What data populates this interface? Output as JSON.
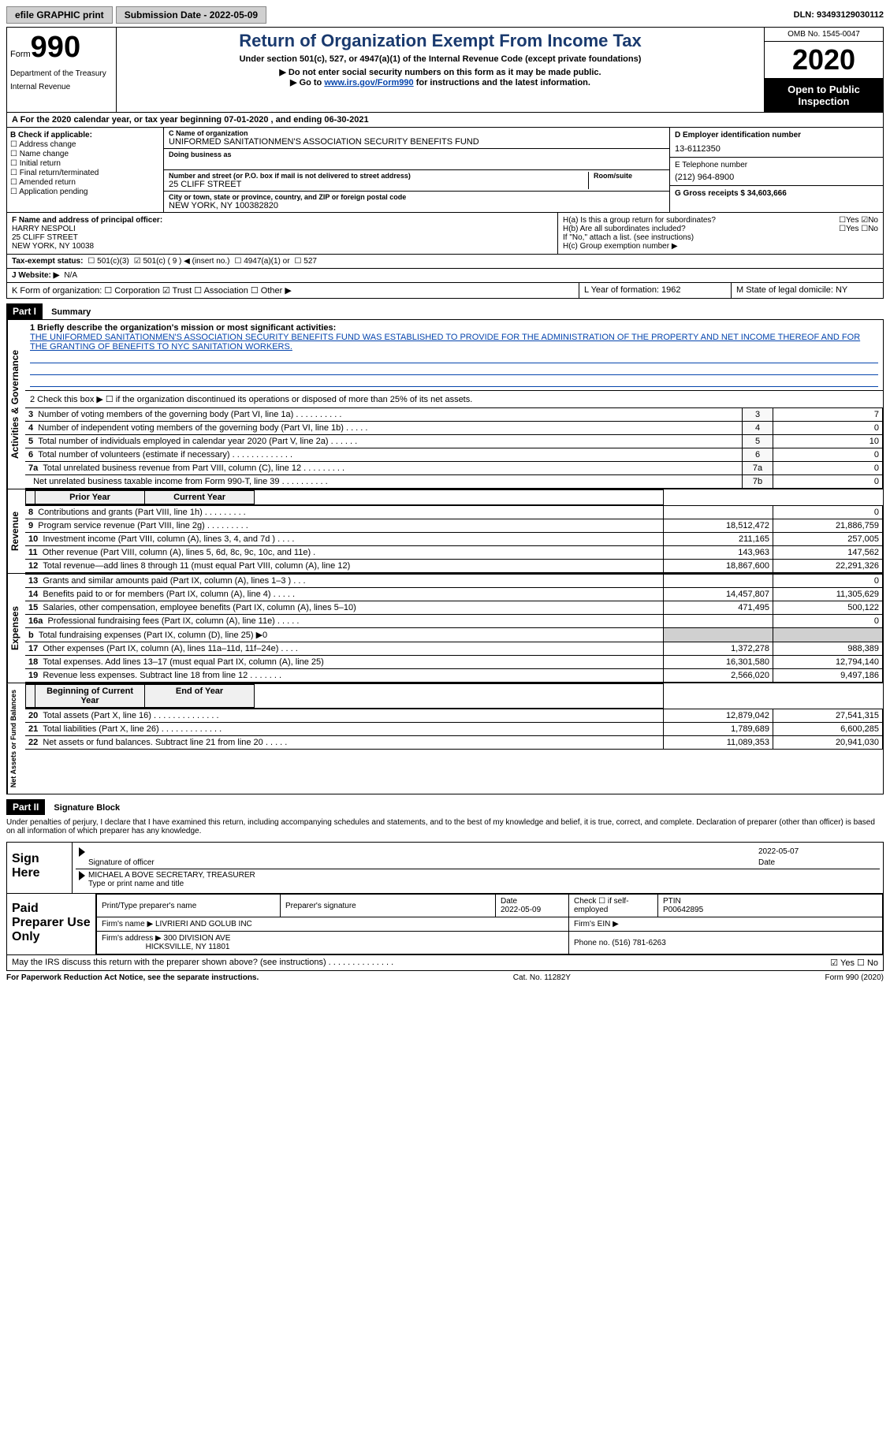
{
  "top": {
    "efile": "efile GRAPHIC print",
    "submission_label": "Submission Date - 2022-05-09",
    "dln_label": "DLN: 93493129030112"
  },
  "header": {
    "form_word": "Form",
    "form_num": "990",
    "dept1": "Department of the Treasury",
    "dept2": "Internal Revenue",
    "title": "Return of Organization Exempt From Income Tax",
    "subtitle": "Under section 501(c), 527, or 4947(a)(1) of the Internal Revenue Code (except private foundations)",
    "line1": "▶ Do not enter social security numbers on this form as it may be made public.",
    "line2_pre": "▶ Go to ",
    "line2_link": "www.irs.gov/Form990",
    "line2_post": " for instructions and the latest information.",
    "omb": "OMB No. 1545-0047",
    "year": "2020",
    "open": "Open to Public Inspection"
  },
  "row_a": "A For the 2020 calendar year, or tax year beginning 07-01-2020   , and ending 06-30-2021",
  "section_b": {
    "label": "B Check if applicable:",
    "opts": [
      "Address change",
      "Name change",
      "Initial return",
      "Final return/terminated",
      "Amended return",
      "Application pending"
    ]
  },
  "section_c": {
    "name_label": "C Name of organization",
    "name": "UNIFORMED SANITATIONMEN'S ASSOCIATION SECURITY BENEFITS FUND",
    "dba_label": "Doing business as",
    "addr_label": "Number and street (or P.O. box if mail is not delivered to street address)",
    "room_label": "Room/suite",
    "addr": "25 CLIFF STREET",
    "city_label": "City or town, state or province, country, and ZIP or foreign postal code",
    "city": "NEW YORK, NY  100382820"
  },
  "section_de": {
    "d_label": "D Employer identification number",
    "d_val": "13-6112350",
    "e_label": "E Telephone number",
    "e_val": "(212) 964-8900",
    "g_label": "G Gross receipts $ 34,603,666"
  },
  "section_f": {
    "label": "F Name and address of principal officer:",
    "name": "HARRY NESPOLI",
    "addr1": "25 CLIFF STREET",
    "addr2": "NEW YORK, NY 10038"
  },
  "section_h": {
    "ha": "H(a)  Is this a group return for subordinates?",
    "hb": "H(b)  Are all subordinates included?",
    "hb_note": "If \"No,\" attach a list. (see instructions)",
    "hc": "H(c)  Group exemption number ▶",
    "yes": "Yes",
    "no": "No"
  },
  "tax_status": {
    "label": "Tax-exempt status:",
    "o1": "501(c)(3)",
    "o2": "501(c) ( 9 ) ◀ (insert no.)",
    "o3": "4947(a)(1) or",
    "o4": "527"
  },
  "website": {
    "label": "J   Website: ▶",
    "val": "N/A"
  },
  "k_line": "K Form of organization:   ☐ Corporation  ☑ Trust  ☐ Association  ☐ Other ▶",
  "l_line": "L Year of formation: 1962",
  "m_line": "M State of legal domicile: NY",
  "part1": {
    "header": "Part I",
    "title": "Summary",
    "q1": "1  Briefly describe the organization's mission or most significant activities:",
    "mission": "THE UNIFORMED SANITATIONMEN'S ASSOCIATION SECURITY BENEFITS FUND WAS ESTABLISHED TO PROVIDE FOR THE ADMINISTRATION OF THE PROPERTY AND NET INCOME THEREOF AND FOR THE GRANTING OF BENEFITS TO NYC SANITATION WORKERS.",
    "q2": "2   Check this box ▶ ☐  if the organization discontinued its operations or disposed of more than 25% of its net assets."
  },
  "gov_rows": [
    {
      "n": "3",
      "desc": "Number of voting members of the governing body (Part VI, line 1a)   .    .    .    .    .    .    .    .    .    .",
      "box": "3",
      "val": "7"
    },
    {
      "n": "4",
      "desc": "Number of independent voting members of the governing body (Part VI, line 1b)   .    .    .    .    .",
      "box": "4",
      "val": "0"
    },
    {
      "n": "5",
      "desc": "Total number of individuals employed in calendar year 2020 (Part V, line 2a)   .    .    .    .    .    .",
      "box": "5",
      "val": "10"
    },
    {
      "n": "6",
      "desc": "Total number of volunteers (estimate if necessary)   .    .    .    .    .    .    .    .    .    .    .    .    .",
      "box": "6",
      "val": "0"
    },
    {
      "n": "7a",
      "desc": "Total unrelated business revenue from Part VIII, column (C), line 12   .    .    .    .    .    .    .    .    .",
      "box": "7a",
      "val": "0"
    },
    {
      "n": "",
      "desc": "Net unrelated business taxable income from Form 990-T, line 39   .    .    .    .    .    .    .    .    .    .",
      "box": "7b",
      "val": "0"
    }
  ],
  "col_headers": {
    "prior": "Prior Year",
    "current": "Current Year",
    "begin": "Beginning of Current Year",
    "end": "End of Year"
  },
  "revenue_rows": [
    {
      "n": "8",
      "desc": "Contributions and grants (Part VIII, line 1h)   .    .    .    .    .    .    .    .    .",
      "prior": "",
      "curr": "0"
    },
    {
      "n": "9",
      "desc": "Program service revenue (Part VIII, line 2g)   .    .    .    .    .    .    .    .    .",
      "prior": "18,512,472",
      "curr": "21,886,759"
    },
    {
      "n": "10",
      "desc": "Investment income (Part VIII, column (A), lines 3, 4, and 7d )   .    .    .    .",
      "prior": "211,165",
      "curr": "257,005"
    },
    {
      "n": "11",
      "desc": "Other revenue (Part VIII, column (A), lines 5, 6d, 8c, 9c, 10c, and 11e)   .",
      "prior": "143,963",
      "curr": "147,562"
    },
    {
      "n": "12",
      "desc": "Total revenue—add lines 8 through 11 (must equal Part VIII, column (A), line 12)",
      "prior": "18,867,600",
      "curr": "22,291,326"
    }
  ],
  "expense_rows": [
    {
      "n": "13",
      "desc": "Grants and similar amounts paid (Part IX, column (A), lines 1–3 )   .    .    .",
      "prior": "",
      "curr": "0"
    },
    {
      "n": "14",
      "desc": "Benefits paid to or for members (Part IX, column (A), line 4)   .    .    .    .    .",
      "prior": "14,457,807",
      "curr": "11,305,629"
    },
    {
      "n": "15",
      "desc": "Salaries, other compensation, employee benefits (Part IX, column (A), lines 5–10)",
      "prior": "471,495",
      "curr": "500,122"
    },
    {
      "n": "16a",
      "desc": "Professional fundraising fees (Part IX, column (A), line 11e)   .    .    .    .    .",
      "prior": "",
      "curr": "0"
    },
    {
      "n": "b",
      "desc": "Total fundraising expenses (Part IX, column (D), line 25) ▶0",
      "prior": "SHADED",
      "curr": "SHADED"
    },
    {
      "n": "17",
      "desc": "Other expenses (Part IX, column (A), lines 11a–11d, 11f–24e)   .    .    .    .",
      "prior": "1,372,278",
      "curr": "988,389"
    },
    {
      "n": "18",
      "desc": "Total expenses. Add lines 13–17 (must equal Part IX, column (A), line 25)",
      "prior": "16,301,580",
      "curr": "12,794,140"
    },
    {
      "n": "19",
      "desc": "Revenue less expenses. Subtract line 18 from line 12   .    .    .    .    .    .    .",
      "prior": "2,566,020",
      "curr": "9,497,186"
    }
  ],
  "net_rows": [
    {
      "n": "20",
      "desc": "Total assets (Part X, line 16)   .    .    .    .    .    .    .    .    .    .    .    .    .    .",
      "prior": "12,879,042",
      "curr": "27,541,315"
    },
    {
      "n": "21",
      "desc": "Total liabilities (Part X, line 26)   .    .    .    .    .    .    .    .    .    .    .    .    .",
      "prior": "1,789,689",
      "curr": "6,600,285"
    },
    {
      "n": "22",
      "desc": "Net assets or fund balances. Subtract line 21 from line 20   .    .    .    .    .",
      "prior": "11,089,353",
      "curr": "20,941,030"
    }
  ],
  "part2": {
    "header": "Part II",
    "title": "Signature Block",
    "declaration": "Under penalties of perjury, I declare that I have examined this return, including accompanying schedules and statements, and to the best of my knowledge and belief, it is true, correct, and complete. Declaration of preparer (other than officer) is based on all information of which preparer has any knowledge."
  },
  "sign": {
    "label": "Sign Here",
    "sig_label": "Signature of officer",
    "date_label": "Date",
    "date_val": "2022-05-07",
    "name": "MICHAEL A BOVE  SECRETARY, TREASURER",
    "name_label": "Type or print name and title"
  },
  "preparer": {
    "label": "Paid Preparer Use Only",
    "h1": "Print/Type preparer's name",
    "h2": "Preparer's signature",
    "h3": "Date",
    "h3v": "2022-05-09",
    "h4": "Check ☐ if self-employed",
    "h5": "PTIN",
    "h5v": "P00642895",
    "firm_label": "Firm's name    ▶",
    "firm": "LIVRIERI AND GOLUB INC",
    "ein_label": "Firm's EIN ▶",
    "addr_label": "Firm's address ▶",
    "addr1": "300 DIVISION AVE",
    "addr2": "HICKSVILLE, NY  11801",
    "phone_label": "Phone no. (516) 781-6263"
  },
  "discuss": "May the IRS discuss this return with the preparer shown above? (see instructions)   .    .    .    .    .    .    .    .    .    .    .    .    .    .",
  "footer": {
    "left": "For Paperwork Reduction Act Notice, see the separate instructions.",
    "mid": "Cat. No. 11282Y",
    "right": "Form 990 (2020)"
  }
}
